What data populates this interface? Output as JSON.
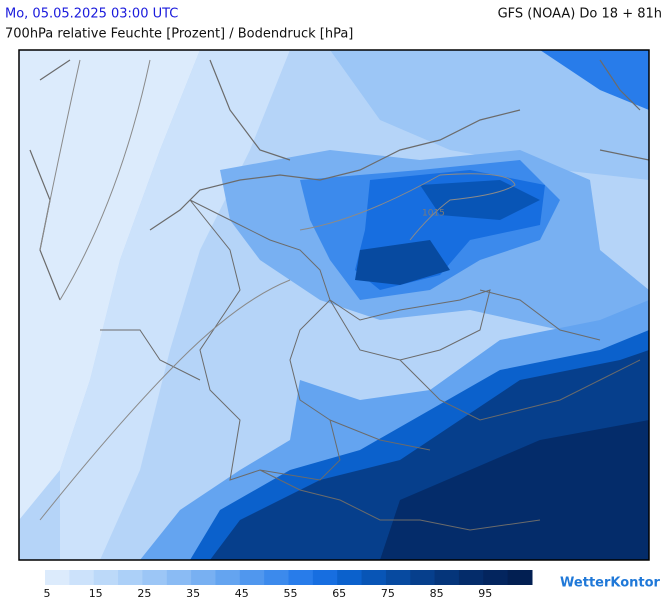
{
  "header": {
    "title": "Mo, 05.05.2025 03:00 UTC",
    "model": "GFS (NOAA) Do 18 + 81h",
    "subtitle": "700hPa relative Feuchte [Prozent] / Bodendruck [hPa]"
  },
  "map": {
    "isobar_label": "1015"
  },
  "legend": {
    "ticks": [
      5,
      15,
      25,
      35,
      45,
      55,
      65,
      75,
      85,
      95
    ],
    "colors": [
      "#dcebfc",
      "#cce2fb",
      "#bcd9f9",
      "#acd0f8",
      "#9cc6f6",
      "#8abbf4",
      "#78b0f2",
      "#64a4f0",
      "#5097ee",
      "#3c8aec",
      "#287cea",
      "#176ee0",
      "#0b61cc",
      "#0855b6",
      "#074aa0",
      "#063f8c",
      "#05357a",
      "#042c6a",
      "#03255e",
      "#021f52"
    ]
  },
  "brand": "WetterKontor"
}
